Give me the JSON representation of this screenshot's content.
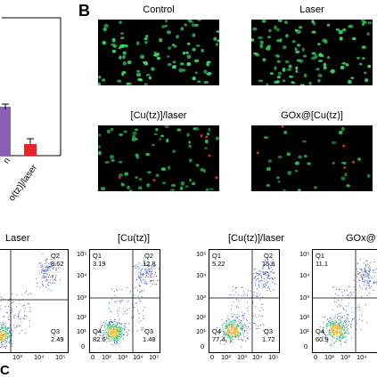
{
  "panel_b": {
    "letter": "B",
    "images": [
      {
        "title": "Control"
      },
      {
        "title": "Laser"
      },
      {
        "title": "[Cu(tz)]/laser"
      },
      {
        "title": "GOx@[Cu(tz)]"
      }
    ]
  },
  "panel_a_partial": {
    "tick_labels": [
      "n",
      "o(tz)]/laser"
    ],
    "bar_colors": [
      "#8a5fb5",
      "#e8232a"
    ]
  },
  "panel_c": {
    "letter": "C",
    "plots": [
      {
        "title": "Laser",
        "q2_value": "8.62",
        "q3_value": "2.49",
        "q1_value": "",
        "q4_value": ""
      },
      {
        "title": "[Cu(tz)]",
        "q1_value": "3.19",
        "q2_value": "12.8",
        "q3_value": "1.48",
        "q4_value": "82.6"
      },
      {
        "title": "[Cu(tz)]/laser",
        "q1_value": "5.22",
        "q2_value": "15.6",
        "q3_value": "1.72",
        "q4_value": "77.4"
      },
      {
        "title": "GOx@",
        "q1_value": "11.1",
        "q4_value": "60.9"
      }
    ],
    "quadrant_names": {
      "q1": "Q1",
      "q2": "Q2",
      "q3": "Q3",
      "q4": "Q4"
    },
    "y_ticks": [
      "10⁵",
      "10⁴",
      "10³",
      "10²",
      "10¹",
      "0"
    ],
    "x_ticks": [
      "0",
      "10²",
      "10³",
      "10⁴",
      "10⁵"
    ],
    "x_ticks_partial": [
      "10³",
      "10⁴",
      "10⁵"
    ]
  }
}
